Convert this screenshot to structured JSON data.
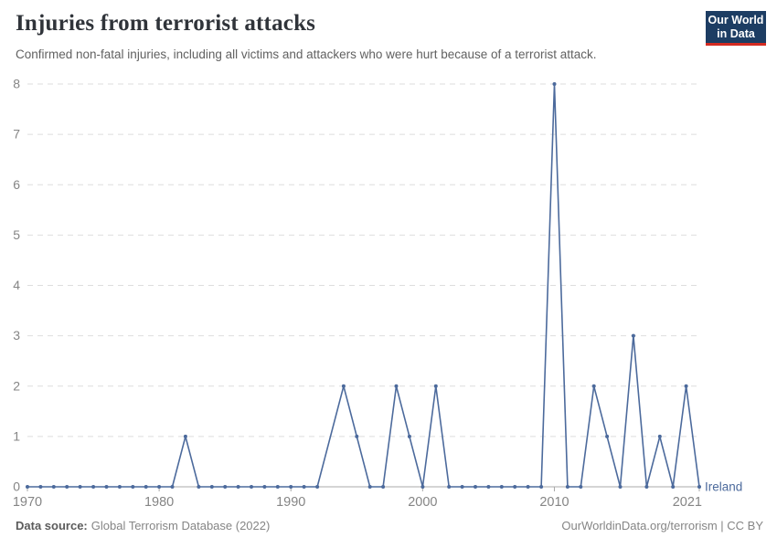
{
  "header": {
    "title": "Injuries from terrorist attacks",
    "subtitle": "Confirmed non-fatal injuries, including all victims and attackers who were hurt because of a terrorist attack.",
    "logo": {
      "line1": "Our World",
      "line2": "in Data"
    }
  },
  "chart_data": {
    "type": "line",
    "title": "Injuries from terrorist attacks",
    "series_label": "Ireland",
    "x": [
      1970,
      1971,
      1972,
      1973,
      1974,
      1975,
      1976,
      1977,
      1978,
      1979,
      1980,
      1981,
      1982,
      1983,
      1984,
      1985,
      1986,
      1987,
      1988,
      1989,
      1990,
      1991,
      1992,
      1993,
      1994,
      1995,
      1996,
      1997,
      1998,
      1999,
      2000,
      2001,
      2002,
      2003,
      2004,
      2005,
      2006,
      2007,
      2008,
      2009,
      2010,
      2011,
      2012,
      2013,
      2014,
      2015,
      2016,
      2017,
      2018,
      2019,
      2020,
      2021
    ],
    "values": [
      0,
      0,
      0,
      0,
      0,
      0,
      0,
      0,
      0,
      0,
      0,
      0,
      1,
      0,
      0,
      0,
      0,
      0,
      0,
      0,
      0,
      0,
      0,
      null,
      2,
      1,
      0,
      0,
      2,
      1,
      0,
      2,
      0,
      0,
      0,
      0,
      0,
      0,
      0,
      0,
      8,
      0,
      0,
      2,
      1,
      0,
      3,
      0,
      1,
      0,
      2,
      0
    ],
    "x_ticks": [
      1970,
      1980,
      1990,
      2000,
      2010,
      2021
    ],
    "y_ticks": [
      0,
      1,
      2,
      3,
      4,
      5,
      6,
      7,
      8
    ],
    "xlim": [
      1970,
      2021
    ],
    "ylim": [
      0,
      8
    ],
    "grid": "horizontal-dashed",
    "legend_position": "end-of-line-label"
  },
  "colors": {
    "line": "#4C6A9C",
    "grid": "#dedede",
    "axis": "#a8a8a8",
    "tick_label": "#858585",
    "logo_bg": "#1d3d63",
    "logo_bar": "#d42b21"
  },
  "footer": {
    "source_label": "Data source:",
    "source_value": "Global Terrorism Database (2022)",
    "credit": "OurWorldinData.org/terrorism | CC BY"
  }
}
